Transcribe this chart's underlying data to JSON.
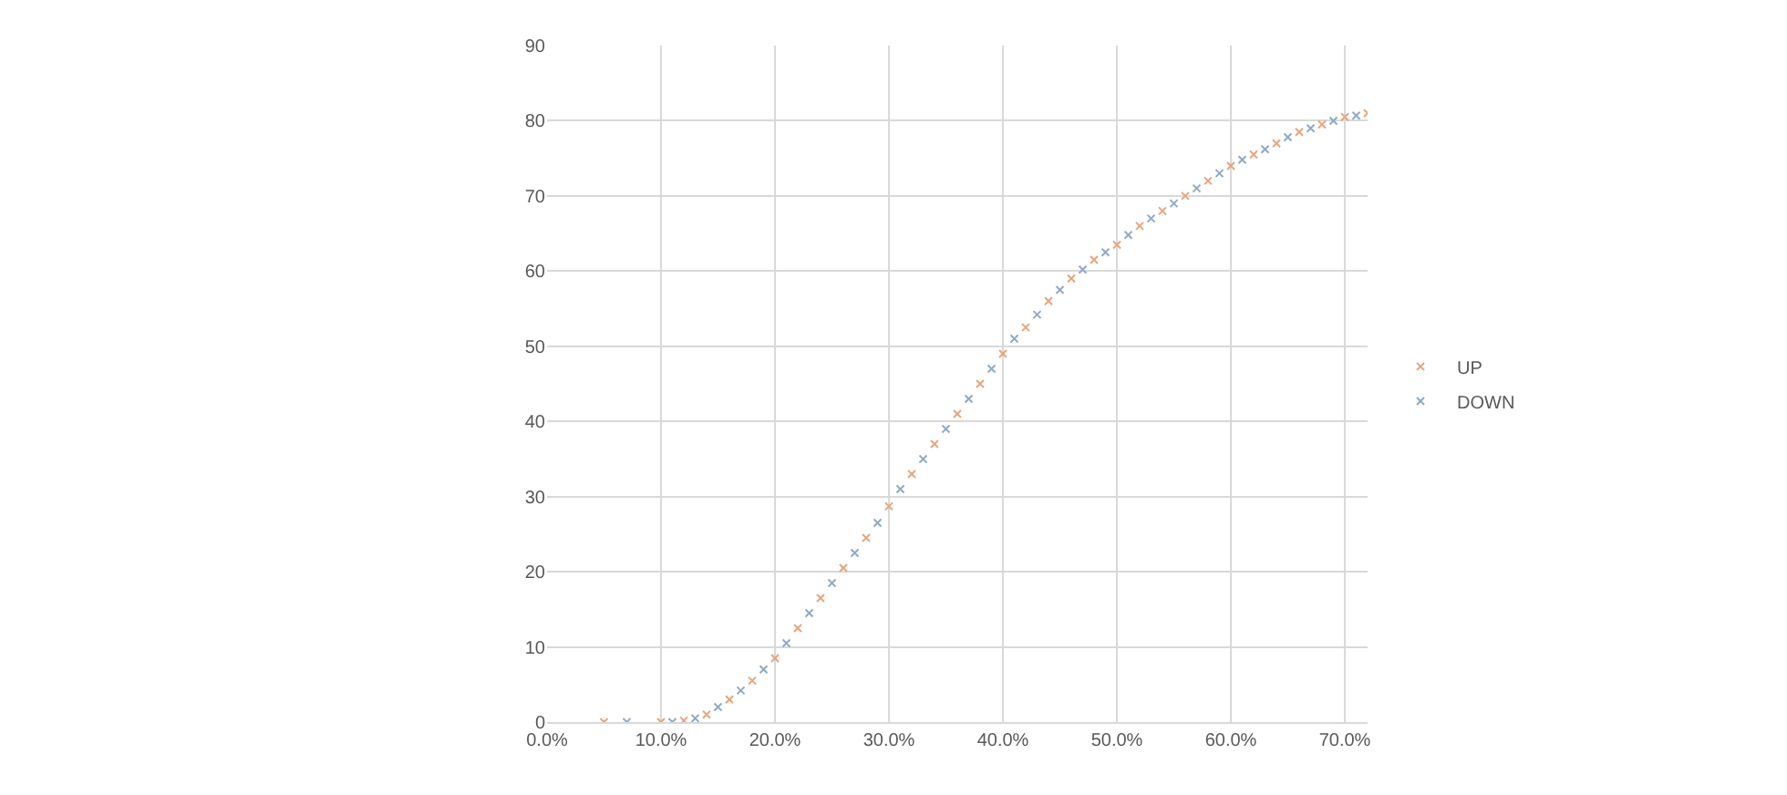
{
  "chart_data": {
    "type": "scatter",
    "x": [
      5,
      10,
      12,
      14,
      16,
      18,
      20,
      22,
      24,
      26,
      28,
      30,
      32,
      34,
      36,
      38,
      40,
      42,
      44,
      46,
      48,
      50,
      52,
      54,
      56,
      58,
      60,
      62,
      64,
      66,
      68,
      70,
      72
    ],
    "series": [
      {
        "name": "UP",
        "color": "#e8a47c",
        "values": [
          0,
          0,
          0.2,
          1,
          3,
          5.5,
          8.5,
          12.5,
          16.5,
          20.5,
          24.5,
          28.7,
          33,
          37,
          41,
          45,
          49,
          52.5,
          56,
          59,
          61.5,
          63.5,
          66,
          68,
          70,
          72,
          74,
          75.5,
          77,
          78.5,
          79.5,
          80.5,
          81
        ]
      },
      {
        "name": "DOWN",
        "color": "#8fa9c8",
        "x": [
          7,
          11,
          13,
          15,
          17,
          19,
          21,
          23,
          25,
          27,
          29,
          31,
          33,
          35,
          37,
          39,
          41,
          43,
          45,
          47,
          49,
          51,
          53,
          55,
          57,
          59,
          61,
          63,
          65,
          67,
          69,
          71
        ],
        "values": [
          0,
          0,
          0.5,
          2,
          4.2,
          7,
          10.5,
          14.5,
          18.5,
          22.5,
          26.5,
          31,
          35,
          39,
          43,
          47,
          51,
          54.2,
          57.5,
          60.2,
          62.5,
          64.8,
          67,
          69,
          71,
          73,
          74.8,
          76.2,
          77.8,
          79,
          80,
          80.7
        ]
      }
    ],
    "xlim": [
      0,
      72
    ],
    "xticks": [
      {
        "value": 0,
        "label": "0.0%"
      },
      {
        "value": 10,
        "label": "10.0%"
      },
      {
        "value": 20,
        "label": "20.0%"
      },
      {
        "value": 30,
        "label": "30.0%"
      },
      {
        "value": 40,
        "label": "40.0%"
      },
      {
        "value": 50,
        "label": "50.0%"
      },
      {
        "value": 60,
        "label": "60.0%"
      },
      {
        "value": 70,
        "label": "70.0%"
      }
    ],
    "ylim": [
      0,
      90
    ],
    "yticks": [
      0,
      10,
      20,
      30,
      40,
      50,
      60,
      70,
      80,
      90
    ],
    "grid": true,
    "legend": "right",
    "marker": "cross"
  }
}
